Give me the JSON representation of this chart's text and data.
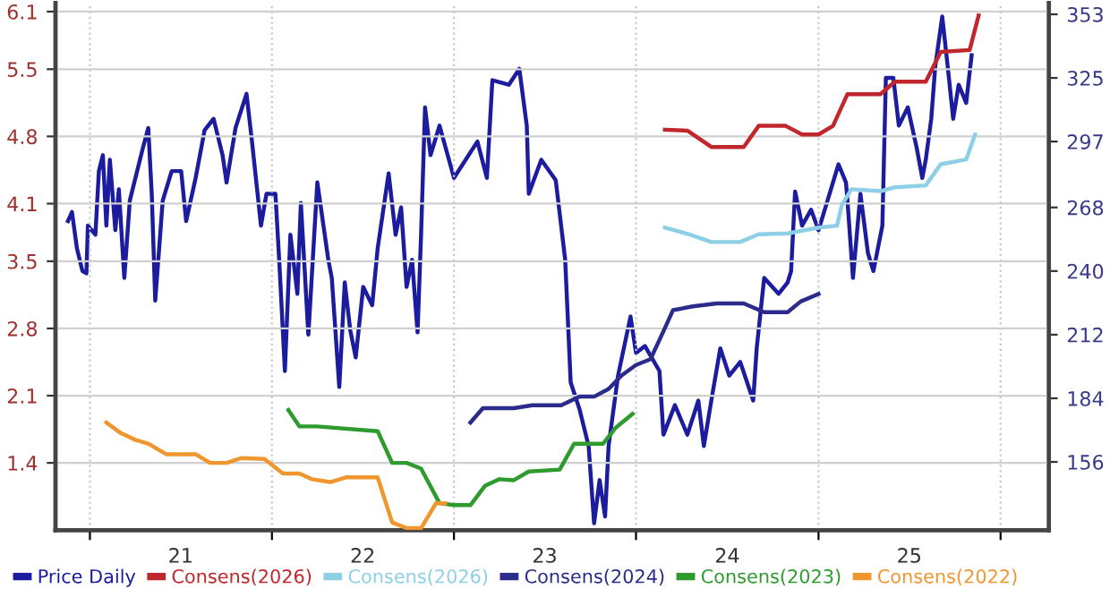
{
  "chart_data": {
    "type": "line",
    "xlim": [
      "2020-10-24",
      "2026-04-08"
    ],
    "xticks": [
      {
        "value": "2021-01-01",
        "label": null
      },
      {
        "value": "2021-07-02",
        "label": "21"
      },
      {
        "value": "2022-01-01",
        "label": null
      },
      {
        "value": "2022-07-02",
        "label": "22"
      },
      {
        "value": "2023-01-01",
        "label": null
      },
      {
        "value": "2023-07-02",
        "label": "23"
      },
      {
        "value": "2024-01-01",
        "label": null
      },
      {
        "value": "2024-07-02",
        "label": "24"
      },
      {
        "value": "2025-01-01",
        "label": null
      },
      {
        "value": "2025-07-02",
        "label": "25"
      },
      {
        "value": "2026-01-01",
        "label": null
      }
    ],
    "ylim": [
      0.7,
      6.19
    ],
    "yticks": [
      1.4,
      2.1,
      2.8,
      3.5,
      4.1,
      4.8,
      5.5,
      6.1
    ],
    "y2lim": [
      126,
      358
    ],
    "y2ticks": [
      156,
      184,
      212,
      240,
      268,
      297,
      325,
      353
    ],
    "grid": true,
    "legend": "bottom",
    "line_style": "solid",
    "marker": "none",
    "series": [
      {
        "name": "Price Daily",
        "color": "#1c1c9e",
        "axis": "y2",
        "x": [
          "2020-11-18",
          "2020-11-26",
          "2020-12-06",
          "2020-12-17",
          "2020-12-25",
          "2020-12-28",
          "2021-01-12",
          "2021-01-19",
          "2021-01-27",
          "2021-02-03",
          "2021-02-10",
          "2021-02-21",
          "2021-02-28",
          "2021-03-11",
          "2021-03-22",
          "2021-04-17",
          "2021-04-28",
          "2021-05-05",
          "2021-05-12",
          "2021-05-27",
          "2021-06-14",
          "2021-07-03",
          "2021-07-13",
          "2021-08-01",
          "2021-08-19",
          "2021-09-06",
          "2021-09-24",
          "2021-10-02",
          "2021-10-20",
          "2021-11-11",
          "2021-11-22",
          "2021-12-10",
          "2021-12-21",
          "2022-01-08",
          "2022-01-16",
          "2022-01-27",
          "2022-02-07",
          "2022-02-21",
          "2022-02-28",
          "2022-03-15",
          "2022-04-02",
          "2022-04-24",
          "2022-05-01",
          "2022-05-16",
          "2022-05-27",
          "2022-06-07",
          "2022-06-18",
          "2022-07-03",
          "2022-07-21",
          "2022-08-01",
          "2022-08-23",
          "2022-09-06",
          "2022-09-17",
          "2022-09-28",
          "2022-10-09",
          "2022-10-20",
          "2022-10-27",
          "2022-11-04",
          "2022-11-15",
          "2022-12-03",
          "2023-01-01",
          "2023-02-17",
          "2023-03-08",
          "2023-03-19",
          "2023-04-21",
          "2023-05-12",
          "2023-05-27",
          "2023-05-31",
          "2023-06-25",
          "2023-07-24",
          "2023-08-12",
          "2023-08-23",
          "2023-09-10",
          "2023-09-28",
          "2023-10-09",
          "2023-10-20",
          "2023-10-31",
          "2023-11-07",
          "2023-11-26",
          "2023-12-21",
          "2024-01-01",
          "2024-01-19",
          "2024-02-17",
          "2024-02-25",
          "2024-03-19",
          "2024-04-13",
          "2024-05-05",
          "2024-05-16",
          "2024-05-31",
          "2024-06-18",
          "2024-07-06",
          "2024-07-28",
          "2024-08-23",
          "2024-08-30",
          "2024-09-14",
          "2024-10-13",
          "2024-10-31",
          "2024-11-07",
          "2024-11-15",
          "2024-11-29",
          "2024-12-17",
          "2025-01-01",
          "2025-01-19",
          "2025-02-10",
          "2025-02-25",
          "2025-02-28",
          "2025-03-11",
          "2025-03-26",
          "2025-04-10",
          "2025-04-21",
          "2025-05-09",
          "2025-05-16",
          "2025-05-31",
          "2025-06-11",
          "2025-06-29",
          "2025-07-17",
          "2025-07-28",
          "2025-08-04",
          "2025-08-15",
          "2025-08-23",
          "2025-09-06",
          "2025-09-17",
          "2025-09-28",
          "2025-10-09",
          "2025-10-24",
          "2025-11-04"
        ],
        "values": [
          262,
          266,
          250,
          240,
          239,
          260,
          256,
          284,
          291,
          260,
          289,
          258,
          276,
          237,
          271,
          294,
          303,
          274,
          227,
          271,
          284,
          284,
          262,
          281,
          302,
          307,
          291,
          279,
          303,
          318,
          297,
          260,
          274,
          274,
          243,
          196,
          256,
          230,
          270,
          212,
          279,
          245,
          237,
          189,
          235,
          214,
          202,
          233,
          225,
          250,
          283,
          256,
          268,
          233,
          245,
          213,
          256,
          312,
          291,
          304,
          281,
          297,
          281,
          324,
          322,
          329,
          304,
          274,
          289,
          280,
          245,
          191,
          179,
          163,
          129,
          148,
          132,
          163,
          194,
          220,
          204,
          207,
          196,
          168,
          181,
          168,
          183,
          163,
          183,
          206,
          194,
          200,
          183,
          206,
          237,
          230,
          235,
          240,
          275,
          260,
          267,
          258,
          271,
          287,
          279,
          271,
          237,
          274,
          248,
          240,
          260,
          325,
          325,
          304,
          312,
          294,
          281,
          289,
          307,
          330,
          352,
          330,
          307,
          322,
          314,
          335
        ]
      },
      {
        "name": "Consens(2026)",
        "color": "#c0272d",
        "x": [
          "2024-02-28",
          "2024-04-13",
          "2024-05-31",
          "2024-08-04",
          "2024-09-03",
          "2024-10-27",
          "2024-11-29",
          "2025-01-01",
          "2025-01-30",
          "2025-02-28",
          "2025-05-05",
          "2025-06-03",
          "2025-08-04",
          "2025-09-03",
          "2025-10-31",
          "2025-11-18"
        ],
        "values": [
          4.87,
          4.86,
          4.69,
          4.69,
          4.91,
          4.91,
          4.82,
          4.82,
          4.91,
          5.24,
          5.24,
          5.37,
          5.37,
          5.68,
          5.7,
          6.06
        ]
      },
      {
        "name": "Consens(2026)",
        "color": "#8ecfe8",
        "x": [
          "2024-02-28",
          "2024-04-17",
          "2024-05-31",
          "2024-07-28",
          "2024-09-03",
          "2024-10-31",
          "2025-01-01",
          "2025-02-07",
          "2025-02-17",
          "2025-03-08",
          "2025-05-05",
          "2025-06-03",
          "2025-08-04",
          "2025-09-03",
          "2025-10-24",
          "2025-11-11"
        ],
        "values": [
          3.85,
          3.78,
          3.7,
          3.7,
          3.78,
          3.79,
          3.85,
          3.87,
          4.09,
          4.25,
          4.23,
          4.27,
          4.29,
          4.51,
          4.56,
          4.82
        ]
      },
      {
        "name": "Consens(2024)",
        "color": "#2b2b8c",
        "x": [
          "2023-02-03",
          "2023-02-28",
          "2023-05-01",
          "2023-06-07",
          "2023-08-04",
          "2023-09-10",
          "2023-10-09",
          "2023-11-07",
          "2023-12-03",
          "2024-01-01",
          "2024-01-30",
          "2024-02-25",
          "2024-03-15",
          "2024-04-24",
          "2024-06-11",
          "2024-08-04",
          "2024-09-14",
          "2024-10-31",
          "2024-11-26",
          "2025-01-01"
        ],
        "values": [
          1.82,
          1.97,
          1.97,
          2.0,
          2.0,
          2.09,
          2.09,
          2.17,
          2.31,
          2.42,
          2.48,
          2.77,
          2.99,
          3.03,
          3.06,
          3.06,
          2.97,
          2.97,
          3.08,
          3.16
        ]
      },
      {
        "name": "Consens(2023)",
        "color": "#2e9b2e",
        "x": [
          "2022-02-03",
          "2022-02-25",
          "2022-04-02",
          "2022-08-01",
          "2022-08-30",
          "2022-09-28",
          "2022-10-27",
          "2022-12-03",
          "2023-01-01",
          "2023-02-03",
          "2023-03-04",
          "2023-04-02",
          "2023-05-01",
          "2023-05-31",
          "2023-08-01",
          "2023-08-30",
          "2023-10-27",
          "2023-11-22",
          "2023-12-25"
        ],
        "values": [
          1.95,
          1.78,
          1.78,
          1.73,
          1.4,
          1.4,
          1.34,
          0.98,
          0.96,
          0.96,
          1.16,
          1.23,
          1.22,
          1.31,
          1.33,
          1.6,
          1.6,
          1.77,
          1.91
        ]
      },
      {
        "name": "Consens(2022)",
        "color": "#f0962e",
        "x": [
          "2021-02-03",
          "2021-03-04",
          "2021-04-02",
          "2021-04-28",
          "2021-06-03",
          "2021-08-01",
          "2021-08-30",
          "2021-10-02",
          "2021-10-31",
          "2021-12-17",
          "2022-01-23",
          "2022-02-25",
          "2022-03-22",
          "2022-04-28",
          "2022-05-31",
          "2022-08-01",
          "2022-08-30",
          "2022-09-28",
          "2022-10-27",
          "2022-11-26",
          "2022-12-14"
        ],
        "values": [
          1.82,
          1.71,
          1.64,
          1.6,
          1.49,
          1.49,
          1.4,
          1.4,
          1.45,
          1.44,
          1.29,
          1.29,
          1.23,
          1.2,
          1.25,
          1.25,
          0.78,
          0.72,
          0.72,
          0.98,
          0.98
        ]
      }
    ]
  }
}
